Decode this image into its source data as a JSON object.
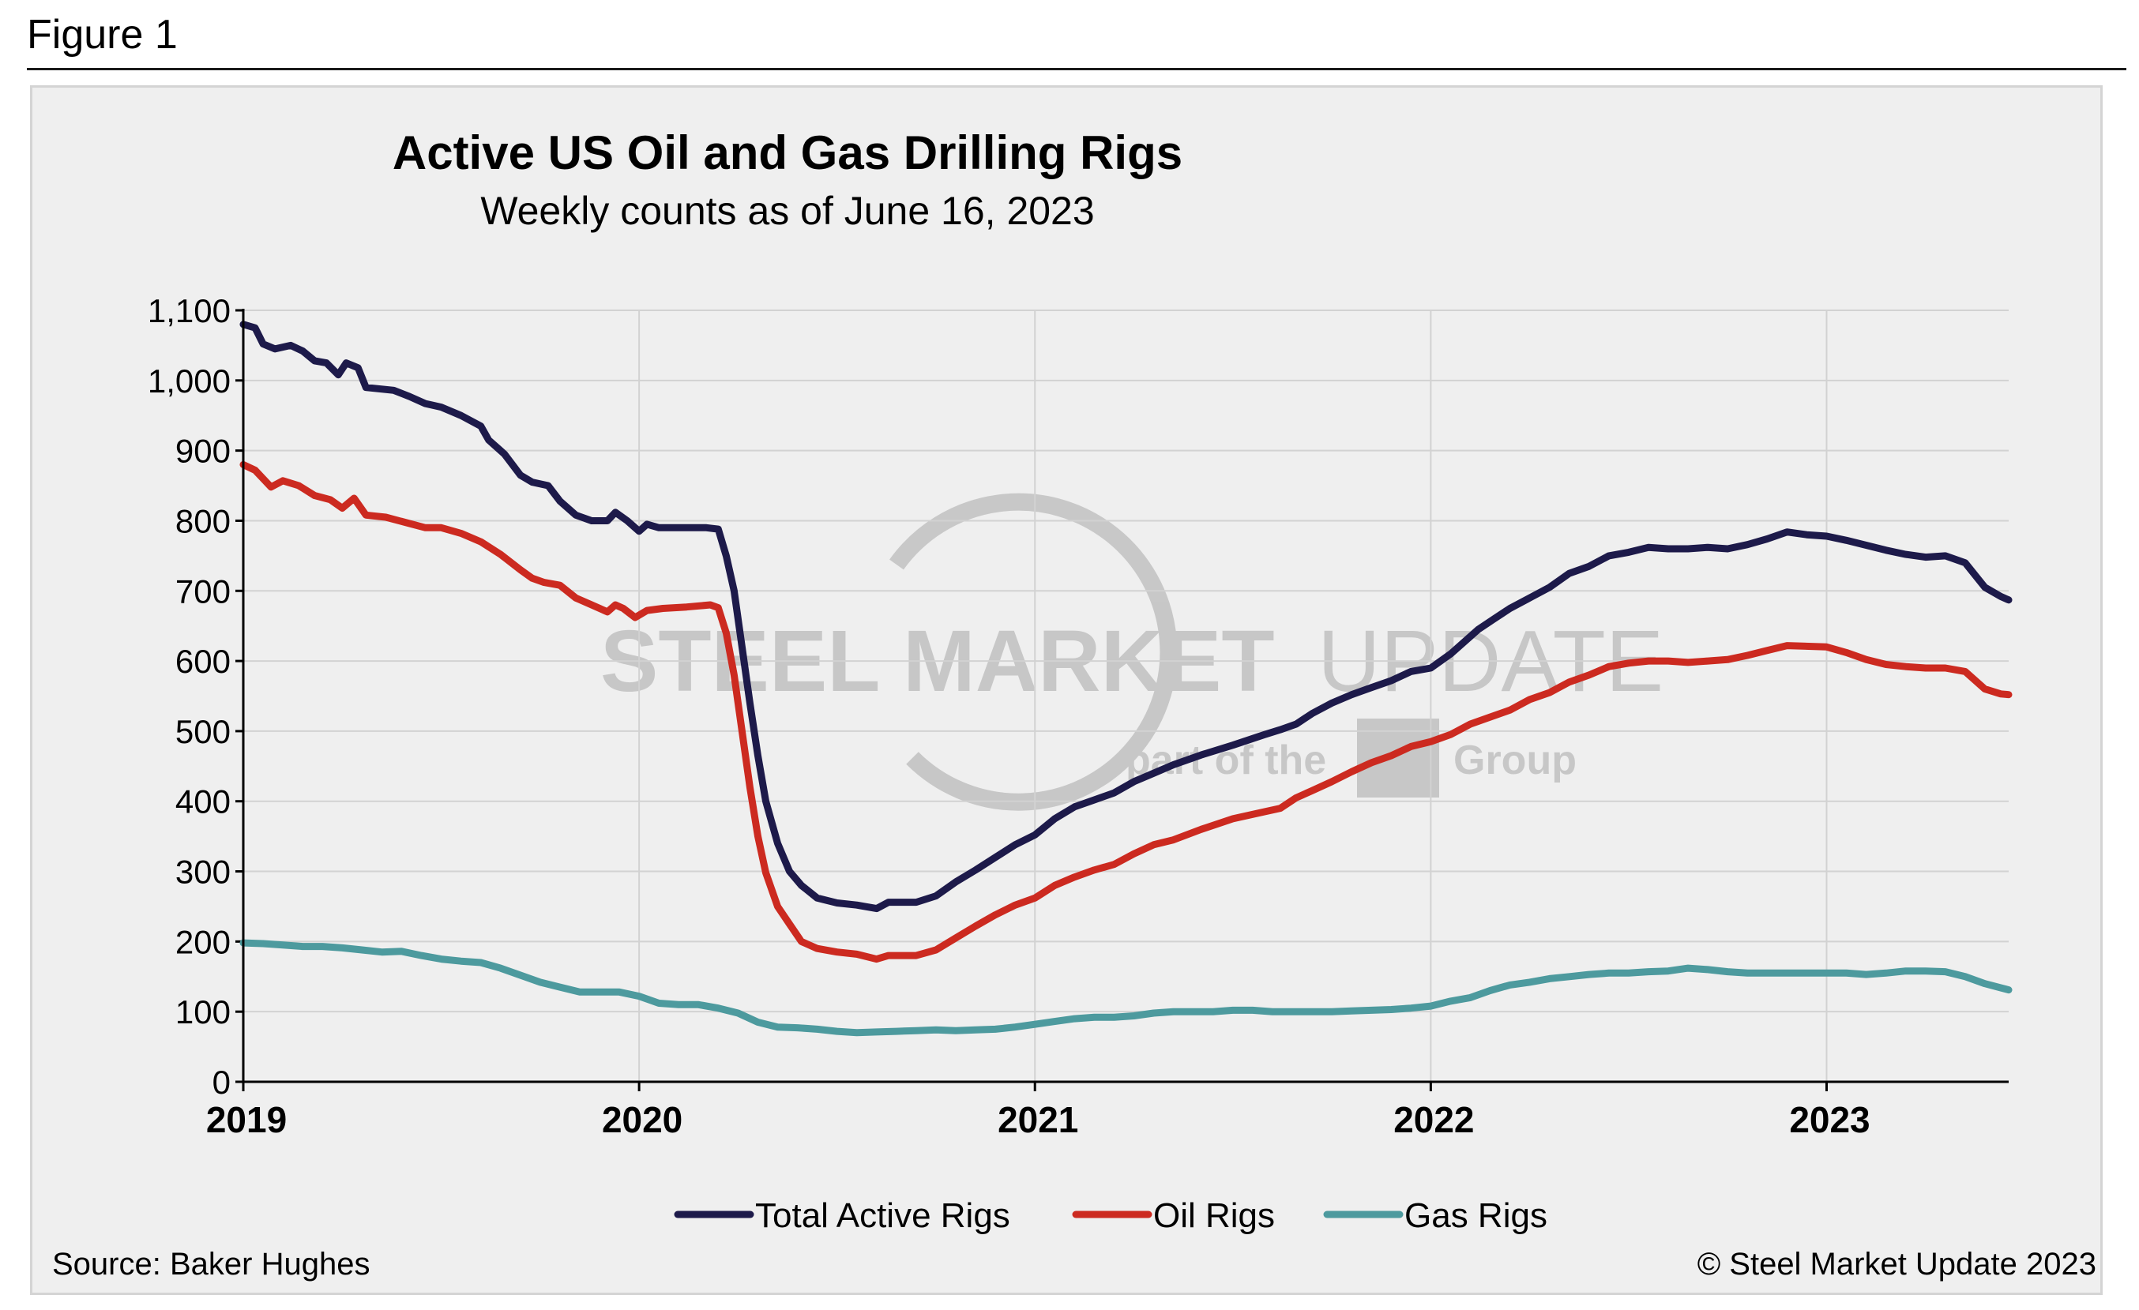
{
  "figure_label": "Figure 1",
  "source_text": "Source: Baker Hughes",
  "copyright_text": "© Steel Market Update 2023",
  "watermark": {
    "main_bold": "STEEL MARKET",
    "main_light": "UPDATE",
    "sub_left": "part of the",
    "sub_right": "Group"
  },
  "colors": {
    "total": "#1d1a4a",
    "oil": "#cc2a20",
    "gas": "#4d9a9e",
    "grid": "#d2d2d2",
    "axis": "#000000"
  },
  "chart_data": {
    "type": "line",
    "title": "Active US Oil and Gas Drilling Rigs",
    "subtitle": "Weekly counts as of June 16, 2023",
    "xlabel": "",
    "ylabel": "",
    "xlim": [
      2019.0,
      2023.46
    ],
    "ylim": [
      0,
      1100
    ],
    "x_ticks": [
      2019,
      2020,
      2021,
      2022,
      2023
    ],
    "x_tick_labels": [
      "2019",
      "2020",
      "2021",
      "2022",
      "2023"
    ],
    "y_ticks": [
      0,
      100,
      200,
      300,
      400,
      500,
      600,
      700,
      800,
      900,
      1000,
      1100
    ],
    "y_tick_labels": [
      "0",
      "100",
      "200",
      "300",
      "400",
      "500",
      "600",
      "700",
      "800",
      "900",
      "1,000",
      "1,100"
    ],
    "grid": true,
    "legend_position": "bottom-center",
    "series": [
      {
        "name": "Total Active Rigs",
        "color": "#1d1a4a",
        "points": [
          [
            2019.0,
            1080
          ],
          [
            2019.03,
            1075
          ],
          [
            2019.05,
            1052
          ],
          [
            2019.08,
            1045
          ],
          [
            2019.12,
            1050
          ],
          [
            2019.15,
            1042
          ],
          [
            2019.18,
            1028
          ],
          [
            2019.21,
            1025
          ],
          [
            2019.24,
            1008
          ],
          [
            2019.26,
            1025
          ],
          [
            2019.29,
            1018
          ],
          [
            2019.31,
            990
          ],
          [
            2019.38,
            986
          ],
          [
            2019.42,
            977
          ],
          [
            2019.46,
            967
          ],
          [
            2019.5,
            962
          ],
          [
            2019.55,
            950
          ],
          [
            2019.6,
            935
          ],
          [
            2019.62,
            915
          ],
          [
            2019.66,
            895
          ],
          [
            2019.7,
            865
          ],
          [
            2019.73,
            855
          ],
          [
            2019.77,
            850
          ],
          [
            2019.8,
            828
          ],
          [
            2019.84,
            808
          ],
          [
            2019.88,
            800
          ],
          [
            2019.92,
            800
          ],
          [
            2019.94,
            812
          ],
          [
            2019.97,
            800
          ],
          [
            2020.0,
            785
          ],
          [
            2020.02,
            795
          ],
          [
            2020.05,
            790
          ],
          [
            2020.1,
            790
          ],
          [
            2020.17,
            790
          ],
          [
            2020.2,
            788
          ],
          [
            2020.22,
            750
          ],
          [
            2020.24,
            700
          ],
          [
            2020.26,
            620
          ],
          [
            2020.28,
            540
          ],
          [
            2020.3,
            465
          ],
          [
            2020.32,
            400
          ],
          [
            2020.35,
            340
          ],
          [
            2020.38,
            300
          ],
          [
            2020.41,
            280
          ],
          [
            2020.45,
            262
          ],
          [
            2020.5,
            255
          ],
          [
            2020.55,
            252
          ],
          [
            2020.6,
            247
          ],
          [
            2020.63,
            256
          ],
          [
            2020.7,
            256
          ],
          [
            2020.75,
            265
          ],
          [
            2020.8,
            285
          ],
          [
            2020.85,
            302
          ],
          [
            2020.9,
            320
          ],
          [
            2020.95,
            338
          ],
          [
            2021.0,
            352
          ],
          [
            2021.05,
            375
          ],
          [
            2021.1,
            392
          ],
          [
            2021.15,
            402
          ],
          [
            2021.2,
            412
          ],
          [
            2021.25,
            428
          ],
          [
            2021.3,
            440
          ],
          [
            2021.35,
            452
          ],
          [
            2021.42,
            466
          ],
          [
            2021.5,
            480
          ],
          [
            2021.58,
            495
          ],
          [
            2021.62,
            502
          ],
          [
            2021.66,
            510
          ],
          [
            2021.7,
            525
          ],
          [
            2021.75,
            540
          ],
          [
            2021.8,
            552
          ],
          [
            2021.85,
            562
          ],
          [
            2021.9,
            572
          ],
          [
            2021.95,
            585
          ],
          [
            2022.0,
            590
          ],
          [
            2022.05,
            610
          ],
          [
            2022.08,
            625
          ],
          [
            2022.12,
            645
          ],
          [
            2022.16,
            660
          ],
          [
            2022.2,
            675
          ],
          [
            2022.25,
            690
          ],
          [
            2022.3,
            705
          ],
          [
            2022.35,
            725
          ],
          [
            2022.4,
            735
          ],
          [
            2022.45,
            750
          ],
          [
            2022.5,
            755
          ],
          [
            2022.55,
            762
          ],
          [
            2022.6,
            760
          ],
          [
            2022.65,
            760
          ],
          [
            2022.7,
            762
          ],
          [
            2022.75,
            760
          ],
          [
            2022.8,
            766
          ],
          [
            2022.85,
            774
          ],
          [
            2022.9,
            784
          ],
          [
            2022.95,
            780
          ],
          [
            2023.0,
            778
          ],
          [
            2023.05,
            772
          ],
          [
            2023.1,
            765
          ],
          [
            2023.15,
            758
          ],
          [
            2023.2,
            752
          ],
          [
            2023.25,
            748
          ],
          [
            2023.3,
            750
          ],
          [
            2023.35,
            740
          ],
          [
            2023.4,
            705
          ],
          [
            2023.44,
            692
          ],
          [
            2023.46,
            687
          ]
        ]
      },
      {
        "name": "Oil Rigs",
        "color": "#cc2a20",
        "points": [
          [
            2019.0,
            880
          ],
          [
            2019.03,
            872
          ],
          [
            2019.05,
            860
          ],
          [
            2019.07,
            848
          ],
          [
            2019.1,
            857
          ],
          [
            2019.14,
            850
          ],
          [
            2019.18,
            836
          ],
          [
            2019.22,
            830
          ],
          [
            2019.25,
            818
          ],
          [
            2019.28,
            832
          ],
          [
            2019.31,
            808
          ],
          [
            2019.36,
            805
          ],
          [
            2019.42,
            796
          ],
          [
            2019.46,
            790
          ],
          [
            2019.5,
            790
          ],
          [
            2019.55,
            782
          ],
          [
            2019.6,
            770
          ],
          [
            2019.65,
            752
          ],
          [
            2019.7,
            730
          ],
          [
            2019.73,
            718
          ],
          [
            2019.76,
            712
          ],
          [
            2019.8,
            708
          ],
          [
            2019.84,
            690
          ],
          [
            2019.88,
            680
          ],
          [
            2019.92,
            670
          ],
          [
            2019.94,
            680
          ],
          [
            2019.96,
            675
          ],
          [
            2019.99,
            662
          ],
          [
            2020.02,
            672
          ],
          [
            2020.06,
            675
          ],
          [
            2020.12,
            677
          ],
          [
            2020.18,
            680
          ],
          [
            2020.2,
            676
          ],
          [
            2020.22,
            640
          ],
          [
            2020.24,
            580
          ],
          [
            2020.26,
            500
          ],
          [
            2020.28,
            420
          ],
          [
            2020.3,
            350
          ],
          [
            2020.32,
            298
          ],
          [
            2020.35,
            250
          ],
          [
            2020.38,
            225
          ],
          [
            2020.41,
            200
          ],
          [
            2020.45,
            190
          ],
          [
            2020.5,
            185
          ],
          [
            2020.55,
            182
          ],
          [
            2020.6,
            175
          ],
          [
            2020.63,
            180
          ],
          [
            2020.7,
            180
          ],
          [
            2020.75,
            188
          ],
          [
            2020.8,
            205
          ],
          [
            2020.85,
            222
          ],
          [
            2020.9,
            238
          ],
          [
            2020.95,
            252
          ],
          [
            2021.0,
            262
          ],
          [
            2021.05,
            280
          ],
          [
            2021.1,
            292
          ],
          [
            2021.15,
            302
          ],
          [
            2021.2,
            310
          ],
          [
            2021.25,
            325
          ],
          [
            2021.3,
            338
          ],
          [
            2021.35,
            345
          ],
          [
            2021.42,
            360
          ],
          [
            2021.5,
            375
          ],
          [
            2021.58,
            385
          ],
          [
            2021.62,
            390
          ],
          [
            2021.66,
            405
          ],
          [
            2021.7,
            415
          ],
          [
            2021.75,
            428
          ],
          [
            2021.8,
            442
          ],
          [
            2021.85,
            455
          ],
          [
            2021.9,
            465
          ],
          [
            2021.95,
            478
          ],
          [
            2022.0,
            485
          ],
          [
            2022.05,
            495
          ],
          [
            2022.1,
            510
          ],
          [
            2022.15,
            520
          ],
          [
            2022.2,
            530
          ],
          [
            2022.25,
            545
          ],
          [
            2022.3,
            555
          ],
          [
            2022.35,
            570
          ],
          [
            2022.4,
            580
          ],
          [
            2022.45,
            592
          ],
          [
            2022.5,
            597
          ],
          [
            2022.55,
            600
          ],
          [
            2022.6,
            600
          ],
          [
            2022.65,
            598
          ],
          [
            2022.7,
            600
          ],
          [
            2022.75,
            602
          ],
          [
            2022.8,
            608
          ],
          [
            2022.85,
            615
          ],
          [
            2022.9,
            622
          ],
          [
            2023.0,
            620
          ],
          [
            2023.05,
            612
          ],
          [
            2023.1,
            602
          ],
          [
            2023.15,
            595
          ],
          [
            2023.2,
            592
          ],
          [
            2023.25,
            590
          ],
          [
            2023.3,
            590
          ],
          [
            2023.35,
            585
          ],
          [
            2023.4,
            560
          ],
          [
            2023.44,
            553
          ],
          [
            2023.46,
            552
          ]
        ]
      },
      {
        "name": "Gas Rigs",
        "color": "#4d9a9e",
        "points": [
          [
            2019.0,
            198
          ],
          [
            2019.05,
            197
          ],
          [
            2019.1,
            195
          ],
          [
            2019.15,
            193
          ],
          [
            2019.2,
            193
          ],
          [
            2019.25,
            191
          ],
          [
            2019.3,
            188
          ],
          [
            2019.35,
            185
          ],
          [
            2019.4,
            186
          ],
          [
            2019.45,
            180
          ],
          [
            2019.5,
            175
          ],
          [
            2019.55,
            172
          ],
          [
            2019.6,
            170
          ],
          [
            2019.65,
            162
          ],
          [
            2019.7,
            152
          ],
          [
            2019.75,
            142
          ],
          [
            2019.8,
            135
          ],
          [
            2019.85,
            128
          ],
          [
            2019.9,
            128
          ],
          [
            2019.95,
            128
          ],
          [
            2020.0,
            122
          ],
          [
            2020.05,
            112
          ],
          [
            2020.1,
            110
          ],
          [
            2020.15,
            110
          ],
          [
            2020.2,
            105
          ],
          [
            2020.25,
            98
          ],
          [
            2020.3,
            85
          ],
          [
            2020.35,
            78
          ],
          [
            2020.4,
            77
          ],
          [
            2020.45,
            75
          ],
          [
            2020.5,
            72
          ],
          [
            2020.55,
            70
          ],
          [
            2020.6,
            71
          ],
          [
            2020.65,
            72
          ],
          [
            2020.7,
            73
          ],
          [
            2020.75,
            74
          ],
          [
            2020.8,
            73
          ],
          [
            2020.85,
            74
          ],
          [
            2020.9,
            75
          ],
          [
            2020.95,
            78
          ],
          [
            2021.0,
            82
          ],
          [
            2021.05,
            86
          ],
          [
            2021.1,
            90
          ],
          [
            2021.15,
            92
          ],
          [
            2021.2,
            92
          ],
          [
            2021.25,
            94
          ],
          [
            2021.3,
            98
          ],
          [
            2021.35,
            100
          ],
          [
            2021.4,
            100
          ],
          [
            2021.45,
            100
          ],
          [
            2021.5,
            102
          ],
          [
            2021.55,
            102
          ],
          [
            2021.6,
            100
          ],
          [
            2021.65,
            100
          ],
          [
            2021.7,
            100
          ],
          [
            2021.75,
            100
          ],
          [
            2021.8,
            101
          ],
          [
            2021.85,
            102
          ],
          [
            2021.9,
            103
          ],
          [
            2021.95,
            105
          ],
          [
            2022.0,
            108
          ],
          [
            2022.05,
            115
          ],
          [
            2022.1,
            120
          ],
          [
            2022.15,
            130
          ],
          [
            2022.2,
            138
          ],
          [
            2022.25,
            142
          ],
          [
            2022.3,
            147
          ],
          [
            2022.35,
            150
          ],
          [
            2022.4,
            153
          ],
          [
            2022.45,
            155
          ],
          [
            2022.5,
            155
          ],
          [
            2022.55,
            157
          ],
          [
            2022.6,
            158
          ],
          [
            2022.65,
            162
          ],
          [
            2022.7,
            160
          ],
          [
            2022.75,
            157
          ],
          [
            2022.8,
            155
          ],
          [
            2022.85,
            155
          ],
          [
            2022.9,
            155
          ],
          [
            2022.95,
            155
          ],
          [
            2023.0,
            155
          ],
          [
            2023.05,
            155
          ],
          [
            2023.1,
            153
          ],
          [
            2023.15,
            155
          ],
          [
            2023.2,
            158
          ],
          [
            2023.25,
            158
          ],
          [
            2023.3,
            157
          ],
          [
            2023.35,
            150
          ],
          [
            2023.4,
            140
          ],
          [
            2023.44,
            134
          ],
          [
            2023.46,
            131
          ]
        ]
      }
    ]
  }
}
